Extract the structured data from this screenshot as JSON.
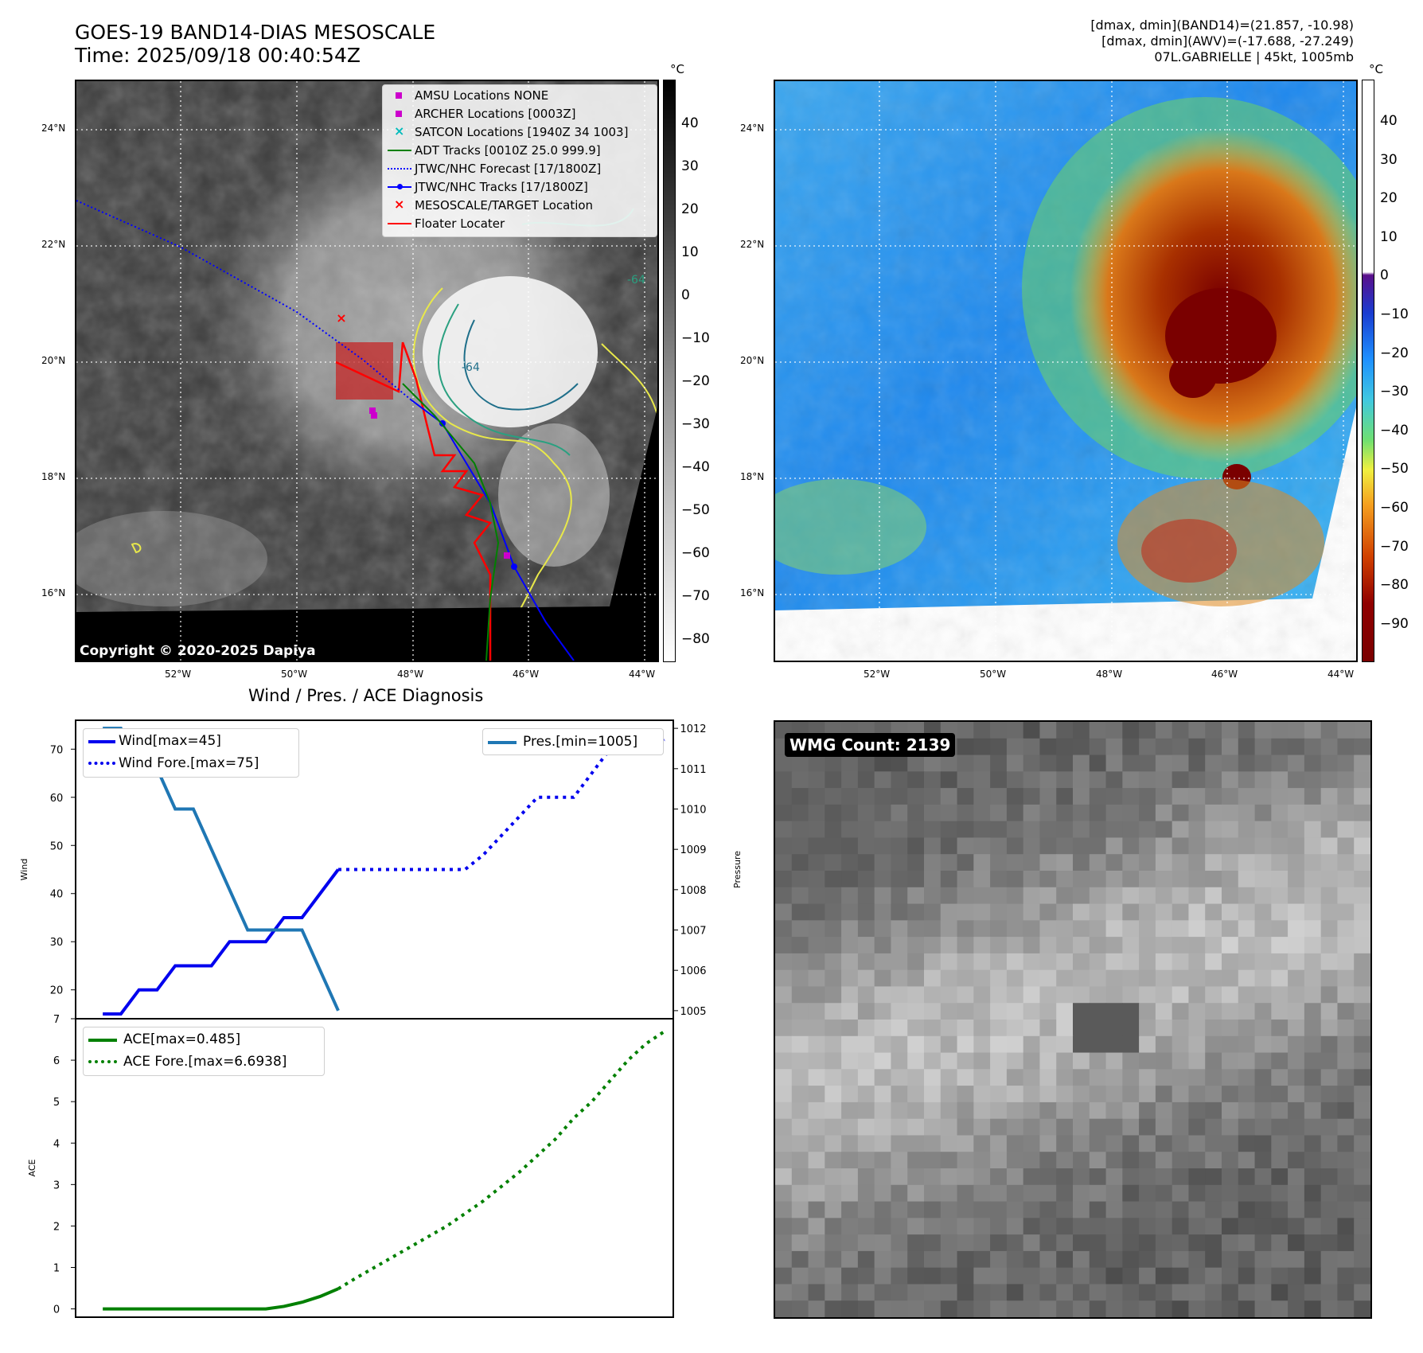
{
  "header": {
    "title_line1": "GOES-19 BAND14-DIAS MESOSCALE",
    "title_line2": "Time: 2025/09/18 00:40:54Z",
    "info_line1": "[dmax, dmin](BAND14)=(21.857, -10.98)",
    "info_line2": "[dmax, dmin](AWV)=(-17.688, -27.249)",
    "info_line3": "07L.GABRIELLE | 45kt, 1005mb"
  },
  "map": {
    "lat_labels": [
      "24°N",
      "22°N",
      "20°N",
      "18°N",
      "16°N"
    ],
    "lon_labels": [
      "52°W",
      "50°W",
      "48°W",
      "46°W",
      "44°W"
    ],
    "copyright": "Copyright © 2020-2025 Dapiya",
    "contour_label": "-64",
    "contour_label2": "-64",
    "legend": [
      {
        "label": "AMSU Locations NONE",
        "color": "#cc00cc",
        "symbol": "square"
      },
      {
        "label": "ARCHER Locations [0003Z]",
        "color": "#cc00cc",
        "symbol": "square"
      },
      {
        "label": "SATCON Locations [1940Z 34 1003]",
        "color": "#00bbbb",
        "symbol": "x"
      },
      {
        "label": "ADT Tracks [0010Z 25.0 999.9]",
        "color": "#008000",
        "symbol": "line"
      },
      {
        "label": "JTWC/NHC Forecast [17/1800Z]",
        "color": "#0000ff",
        "symbol": "dotted"
      },
      {
        "label": "JTWC/NHC Tracks [17/1800Z]",
        "color": "#0000ff",
        "symbol": "line-dot"
      },
      {
        "label": "MESOSCALE/TARGET Location",
        "color": "#ff0000",
        "symbol": "x"
      },
      {
        "label": "Floater Locater",
        "color": "#ff0000",
        "symbol": "line"
      }
    ]
  },
  "colorbar_gray": {
    "unit": "°C",
    "ticks": [
      "40",
      "30",
      "20",
      "10",
      "0",
      "−10",
      "−20",
      "−30",
      "−40",
      "−50",
      "−60",
      "−70",
      "−80"
    ]
  },
  "colorbar_color": {
    "unit": "°C",
    "ticks": [
      "40",
      "30",
      "20",
      "10",
      "0",
      "−10",
      "−20",
      "−30",
      "−40",
      "−50",
      "−60",
      "−70",
      "−80",
      "−90"
    ]
  },
  "wmg": {
    "label": "WMG Count: 2139"
  },
  "chart_data": [
    {
      "type": "line",
      "title": "Wind / Pres. / ACE Diagnosis",
      "ylabel": "Wind",
      "y2label": "Pressure",
      "ylim": [
        14,
        76
      ],
      "y2lim": [
        1004.8,
        1012.2
      ],
      "yticks": [
        20,
        30,
        40,
        50,
        60,
        70
      ],
      "y2ticks": [
        1005,
        1006,
        1007,
        1008,
        1009,
        1010,
        1011,
        1012
      ],
      "series": [
        {
          "name": "Wind[max=45]",
          "color": "#0000ee",
          "style": "solid",
          "x": [
            0,
            1,
            2,
            3,
            4,
            5,
            6,
            7,
            8,
            9,
            10,
            11,
            12,
            13
          ],
          "values": [
            15,
            15,
            20,
            20,
            25,
            25,
            25,
            30,
            30,
            30,
            35,
            35,
            40,
            45
          ]
        },
        {
          "name": "Wind Fore.[max=75]",
          "color": "#0000ee",
          "style": "dotted",
          "x": [
            13,
            14,
            15,
            16,
            17,
            18,
            19,
            20,
            21,
            22,
            23,
            24,
            25,
            26,
            27,
            28,
            29,
            30,
            31
          ],
          "values": [
            45,
            45,
            45,
            45,
            45,
            45,
            45,
            45,
            48,
            52,
            56,
            60,
            60,
            60,
            65,
            70,
            70,
            70,
            72
          ]
        },
        {
          "name": "Pres.[min=1005]",
          "color": "#1f77b4",
          "style": "solid",
          "axis": "right",
          "x": [
            0,
            1,
            2,
            3,
            4,
            5,
            6,
            7,
            8,
            9,
            10,
            11,
            12,
            13
          ],
          "values": [
            1012,
            1012,
            1011,
            1011,
            1010,
            1010,
            1009,
            1008,
            1007,
            1007,
            1007,
            1007,
            1006,
            1005
          ]
        }
      ]
    },
    {
      "type": "line",
      "ylabel": "ACE",
      "ylim": [
        -0.2,
        7
      ],
      "yticks": [
        0,
        1,
        2,
        3,
        4,
        5,
        6,
        7
      ],
      "series": [
        {
          "name": "ACE[max=0.485]",
          "color": "#008000",
          "style": "solid",
          "x": [
            0,
            1,
            2,
            3,
            4,
            5,
            6,
            7,
            8,
            9,
            10,
            11,
            12,
            13
          ],
          "values": [
            0,
            0,
            0,
            0,
            0,
            0,
            0,
            0,
            0,
            0,
            0.06,
            0.16,
            0.3,
            0.485
          ]
        },
        {
          "name": "ACE Fore.[max=6.6938]",
          "color": "#008000",
          "style": "dotted",
          "x": [
            13,
            14,
            15,
            16,
            17,
            18,
            19,
            20,
            21,
            22,
            23,
            24,
            25,
            26,
            27,
            28,
            29,
            30,
            31
          ],
          "values": [
            0.485,
            0.75,
            1.0,
            1.25,
            1.5,
            1.75,
            2.0,
            2.3,
            2.6,
            2.95,
            3.3,
            3.7,
            4.1,
            4.6,
            5.0,
            5.5,
            6.0,
            6.4,
            6.69
          ]
        }
      ]
    }
  ]
}
